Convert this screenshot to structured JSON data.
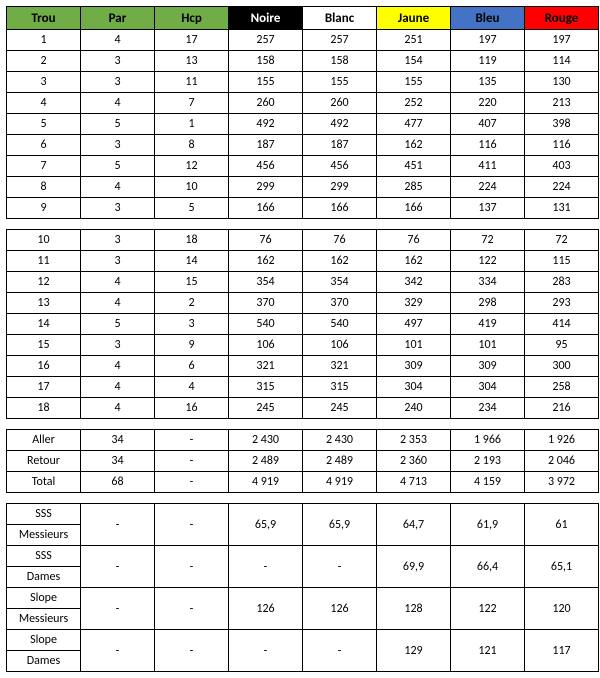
{
  "columns": {
    "trou": "Trou",
    "par": "Par",
    "hcp": "Hcp",
    "noire": "Noire",
    "blanc": "Blanc",
    "jaune": "Jaune",
    "bleu": "Bleu",
    "rouge": "Rouge"
  },
  "colors": {
    "green": "#70ad47",
    "black": "#000000",
    "white": "#ffffff",
    "yellow": "#ffff00",
    "blue": "#4472c4",
    "red": "#ff0000"
  },
  "front9": [
    {
      "trou": "1",
      "par": "4",
      "hcp": "17",
      "noire": "257",
      "blanc": "257",
      "jaune": "251",
      "bleu": "197",
      "rouge": "197"
    },
    {
      "trou": "2",
      "par": "3",
      "hcp": "13",
      "noire": "158",
      "blanc": "158",
      "jaune": "154",
      "bleu": "119",
      "rouge": "114"
    },
    {
      "trou": "3",
      "par": "3",
      "hcp": "11",
      "noire": "155",
      "blanc": "155",
      "jaune": "155",
      "bleu": "135",
      "rouge": "130"
    },
    {
      "trou": "4",
      "par": "4",
      "hcp": "7",
      "noire": "260",
      "blanc": "260",
      "jaune": "252",
      "bleu": "220",
      "rouge": "213"
    },
    {
      "trou": "5",
      "par": "5",
      "hcp": "1",
      "noire": "492",
      "blanc": "492",
      "jaune": "477",
      "bleu": "407",
      "rouge": "398"
    },
    {
      "trou": "6",
      "par": "3",
      "hcp": "8",
      "noire": "187",
      "blanc": "187",
      "jaune": "162",
      "bleu": "116",
      "rouge": "116"
    },
    {
      "trou": "7",
      "par": "5",
      "hcp": "12",
      "noire": "456",
      "blanc": "456",
      "jaune": "451",
      "bleu": "411",
      "rouge": "403"
    },
    {
      "trou": "8",
      "par": "4",
      "hcp": "10",
      "noire": "299",
      "blanc": "299",
      "jaune": "285",
      "bleu": "224",
      "rouge": "224"
    },
    {
      "trou": "9",
      "par": "3",
      "hcp": "5",
      "noire": "166",
      "blanc": "166",
      "jaune": "166",
      "bleu": "137",
      "rouge": "131"
    }
  ],
  "back9": [
    {
      "trou": "10",
      "par": "3",
      "hcp": "18",
      "noire": "76",
      "blanc": "76",
      "jaune": "76",
      "bleu": "72",
      "rouge": "72"
    },
    {
      "trou": "11",
      "par": "3",
      "hcp": "14",
      "noire": "162",
      "blanc": "162",
      "jaune": "162",
      "bleu": "122",
      "rouge": "115"
    },
    {
      "trou": "12",
      "par": "4",
      "hcp": "15",
      "noire": "354",
      "blanc": "354",
      "jaune": "342",
      "bleu": "334",
      "rouge": "283"
    },
    {
      "trou": "13",
      "par": "4",
      "hcp": "2",
      "noire": "370",
      "blanc": "370",
      "jaune": "329",
      "bleu": "298",
      "rouge": "293"
    },
    {
      "trou": "14",
      "par": "5",
      "hcp": "3",
      "noire": "540",
      "blanc": "540",
      "jaune": "497",
      "bleu": "419",
      "rouge": "414"
    },
    {
      "trou": "15",
      "par": "3",
      "hcp": "9",
      "noire": "106",
      "blanc": "106",
      "jaune": "101",
      "bleu": "101",
      "rouge": "95"
    },
    {
      "trou": "16",
      "par": "4",
      "hcp": "6",
      "noire": "321",
      "blanc": "321",
      "jaune": "309",
      "bleu": "309",
      "rouge": "300"
    },
    {
      "trou": "17",
      "par": "4",
      "hcp": "4",
      "noire": "315",
      "blanc": "315",
      "jaune": "304",
      "bleu": "304",
      "rouge": "258"
    },
    {
      "trou": "18",
      "par": "4",
      "hcp": "16",
      "noire": "245",
      "blanc": "245",
      "jaune": "240",
      "bleu": "234",
      "rouge": "216"
    }
  ],
  "totals": [
    {
      "label": "Aller",
      "par": "34",
      "hcp": "-",
      "noire": "2 430",
      "blanc": "2 430",
      "jaune": "2 353",
      "bleu": "1 966",
      "rouge": "1 926"
    },
    {
      "label": "Retour",
      "par": "34",
      "hcp": "-",
      "noire": "2 489",
      "blanc": "2 489",
      "jaune": "2 360",
      "bleu": "2 193",
      "rouge": "2 046"
    },
    {
      "label": "Total",
      "par": "68",
      "hcp": "-",
      "noire": "4 919",
      "blanc": "4 919",
      "jaune": "4 713",
      "bleu": "4 159",
      "rouge": "3 972"
    }
  ],
  "ratings": [
    {
      "l1": "SSS",
      "l2": "Messieurs",
      "par": "-",
      "hcp": "-",
      "noire": "65,9",
      "blanc": "65,9",
      "jaune": "64,7",
      "bleu": "61,9",
      "rouge": "61"
    },
    {
      "l1": "SSS",
      "l2": "Dames",
      "par": "-",
      "hcp": "-",
      "noire": "-",
      "blanc": "-",
      "jaune": "69,9",
      "bleu": "66,4",
      "rouge": "65,1"
    },
    {
      "l1": "Slope",
      "l2": "Messieurs",
      "par": "-",
      "hcp": "-",
      "noire": "126",
      "blanc": "126",
      "jaune": "128",
      "bleu": "122",
      "rouge": "120"
    },
    {
      "l1": "Slope",
      "l2": "Dames",
      "par": "-",
      "hcp": "-",
      "noire": "-",
      "blanc": "-",
      "jaune": "129",
      "bleu": "121",
      "rouge": "117"
    }
  ]
}
